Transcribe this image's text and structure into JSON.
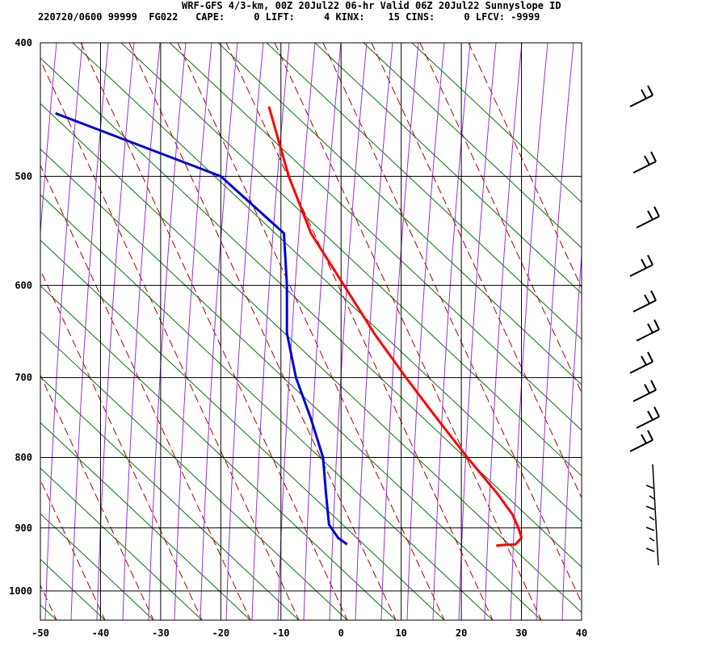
{
  "header": {
    "title": "WRF-GFS 4/3-km, 00Z 20Jul22 06-hr Valid 06Z 20Jul22 Sunnyslope ID",
    "subhead": "220720/0600 99999  FG022   CAPE:     0 LIFT:     4 KINX:    15 CINS:     0 LFCV: -9999"
  },
  "chart_data": {
    "type": "line",
    "title": "WRF-GFS 4/3-km, 00Z 20Jul22 06-hr Valid 06Z 20Jul22 Sunnyslope ID",
    "xlabel": "",
    "ylabel": "",
    "x_ticks": [
      -50,
      -40,
      -30,
      -20,
      -10,
      0,
      10,
      20,
      30,
      40
    ],
    "y_ticks": [
      400,
      500,
      600,
      700,
      800,
      900,
      1000
    ],
    "xlim": [
      -50,
      40
    ],
    "ylim": [
      1050,
      400
    ],
    "y_scale": "log",
    "grid": true,
    "series": [
      {
        "color": "#ff0000",
        "points": [
          {
            "p": 445,
            "t": -12.0
          },
          {
            "p": 500,
            "t": -8.7
          },
          {
            "p": 550,
            "t": -5.0
          },
          {
            "p": 600,
            "t": 0.5
          },
          {
            "p": 650,
            "t": 5.5
          },
          {
            "p": 700,
            "t": 10.8
          },
          {
            "p": 750,
            "t": 16.0
          },
          {
            "p": 800,
            "t": 21.0
          },
          {
            "p": 850,
            "t": 26.0
          },
          {
            "p": 880,
            "t": 28.5
          },
          {
            "p": 900,
            "t": 29.5
          },
          {
            "p": 915,
            "t": 30.0
          },
          {
            "p": 925,
            "t": 29.0
          },
          {
            "p": 926,
            "t": 27.0
          },
          {
            "p": 927,
            "t": 25.8
          }
        ]
      },
      {
        "color": "#0000dd",
        "points": [
          {
            "p": 450,
            "t": -47.5
          },
          {
            "p": 500,
            "t": -20.0
          },
          {
            "p": 550,
            "t": -9.5
          },
          {
            "p": 600,
            "t": -9.0
          },
          {
            "p": 650,
            "t": -9.0
          },
          {
            "p": 700,
            "t": -7.5
          },
          {
            "p": 750,
            "t": -5.0
          },
          {
            "p": 800,
            "t": -3.0
          },
          {
            "p": 850,
            "t": -2.5
          },
          {
            "p": 895,
            "t": -2.0
          },
          {
            "p": 915,
            "t": -0.5
          },
          {
            "p": 925,
            "t": 1.0
          }
        ]
      }
    ],
    "background_lines": {
      "dry_adiabat_color": "#9932cc",
      "mixing_ratio_color": "#aa0000",
      "isotherm_skew_color": "#007700"
    },
    "wind_barbs_color": "#000000"
  }
}
